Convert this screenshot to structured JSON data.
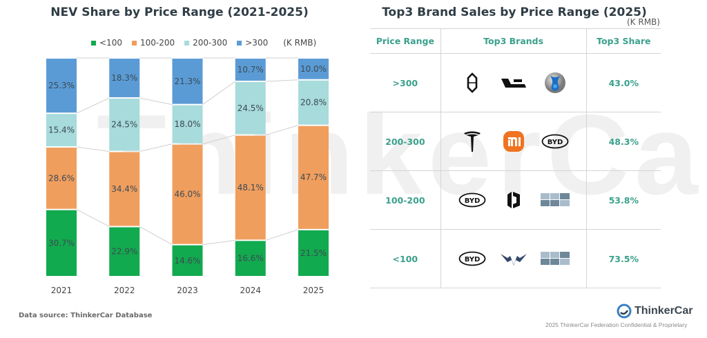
{
  "watermark": "ThinkerCar",
  "chart_data": {
    "type": "bar",
    "stacked": true,
    "normalized": true,
    "title": "NEV Share by Price Range (2021-2025)",
    "unit_note": "(K RMB)",
    "xlabel": "",
    "ylabel": "",
    "ylim": [
      0,
      100
    ],
    "grid": false,
    "legend_position": "top",
    "categories": [
      "2021",
      "2022",
      "2023",
      "2024",
      "2025"
    ],
    "series": [
      {
        "name": "<100",
        "color": "#12aa4e",
        "values": [
          30.7,
          22.9,
          14.6,
          16.6,
          21.5
        ]
      },
      {
        "name": "100-200",
        "color": "#f09e5e",
        "values": [
          28.6,
          34.4,
          46.0,
          48.1,
          47.7
        ]
      },
      {
        "name": "200-300",
        "color": "#a8dbdb",
        "values": [
          15.4,
          24.5,
          18.0,
          24.5,
          20.8
        ]
      },
      {
        "name": ">300",
        "color": "#5b9bd5",
        "values": [
          25.3,
          18.3,
          21.3,
          10.7,
          10.0
        ]
      }
    ],
    "value_suffix": "%",
    "label_color": "#3b4a54"
  },
  "source": "Data source: ThinkerCar Database",
  "table": {
    "title": "Top3 Brand Sales by Price Range (2025)",
    "unit": "(K RMB)",
    "headers": [
      "Price Range",
      "Top3 Brands",
      "Top3 Share"
    ],
    "rows": [
      {
        "range": ">300",
        "brands": [
          "aito-logo-icon",
          "li-auto-logo-icon",
          "voyah-logo-icon"
        ],
        "share": "43.0%"
      },
      {
        "range": "200-300",
        "brands": [
          "tesla-logo-icon",
          "xiaomi-logo-icon",
          "byd-logo-icon"
        ],
        "share": "48.3%"
      },
      {
        "range": "100-200",
        "brands": [
          "byd-logo-icon",
          "leapmotor-logo-icon",
          "placeholder-logo-icon"
        ],
        "share": "53.8%"
      },
      {
        "range": "<100",
        "brands": [
          "byd-logo-icon",
          "wuling-logo-icon",
          "placeholder-logo-icon"
        ],
        "share": "73.5%"
      }
    ]
  },
  "footer": {
    "brand": "ThinkerCar",
    "note": "2025 ThinkerCar Federation Confidential & Proprietary"
  }
}
